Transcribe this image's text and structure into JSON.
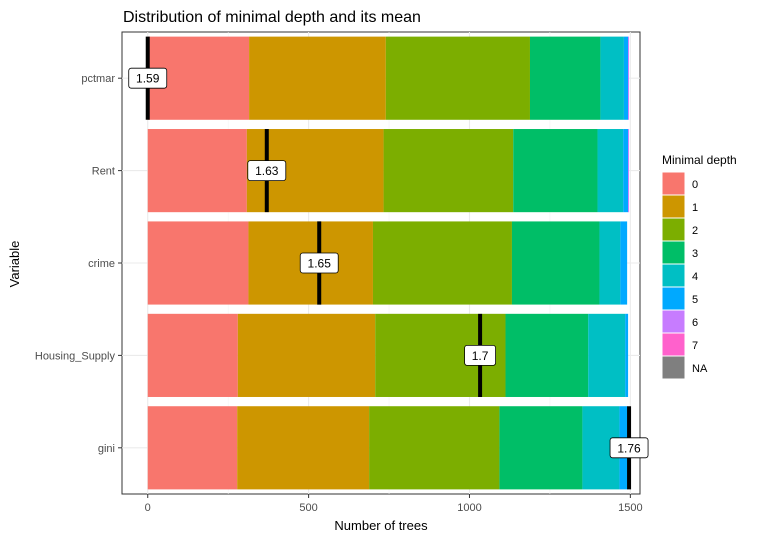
{
  "chart_data": {
    "type": "bar",
    "orientation": "horizontal",
    "stacked": true,
    "title": "Distribution of minimal depth and its mean",
    "xlabel": "Number of trees",
    "ylabel": "Variable",
    "xlim": [
      -80,
      1530
    ],
    "x_ticks": [
      "0",
      "500",
      "1000",
      "1500"
    ],
    "grid": true,
    "legend_title": "Minimal depth",
    "legend_position": "right",
    "categories": [
      "pctmar",
      "Rent",
      "crime",
      "Housing_Supply",
      "gini"
    ],
    "segment_keys": [
      "0",
      "1",
      "2",
      "3",
      "4",
      "5",
      "6",
      "7",
      "NA"
    ],
    "segment_colors": [
      "#F8766D",
      "#CD9600",
      "#7CAE00",
      "#00BE67",
      "#00BFC4",
      "#00A9FF",
      "#C77CFF",
      "#FF61CC",
      "#7F7F7F"
    ],
    "series": [
      {
        "name": "0",
        "values": [
          315,
          308,
          313,
          280,
          278
        ]
      },
      {
        "name": "1",
        "values": [
          425,
          425,
          387,
          427,
          410
        ]
      },
      {
        "name": "2",
        "values": [
          448,
          403,
          432,
          405,
          405
        ]
      },
      {
        "name": "3",
        "values": [
          219,
          262,
          272,
          257,
          258
        ]
      },
      {
        "name": "4",
        "values": [
          73,
          80,
          65,
          115,
          115
        ]
      },
      {
        "name": "5",
        "values": [
          13,
          15,
          21,
          9,
          25
        ]
      },
      {
        "name": "6",
        "values": [
          3,
          3,
          0,
          0,
          0
        ]
      },
      {
        "name": "7",
        "values": [
          0,
          0,
          0,
          0,
          0
        ]
      },
      {
        "name": "NA",
        "values": [
          0,
          0,
          0,
          0,
          0
        ]
      }
    ],
    "means": [
      {
        "category": "pctmar",
        "label": "1.59",
        "x": 0
      },
      {
        "category": "Rent",
        "label": "1.63",
        "x": 370
      },
      {
        "category": "crime",
        "label": "1.65",
        "x": 533
      },
      {
        "category": "Housing_Supply",
        "label": "1.7",
        "x": 1033
      },
      {
        "category": "gini",
        "label": "1.76",
        "x": 1496
      }
    ]
  }
}
